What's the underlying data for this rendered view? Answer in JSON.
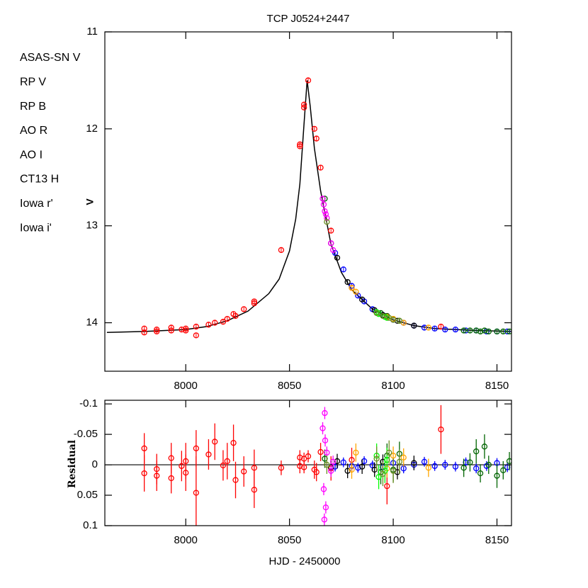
{
  "chart_data": [
    {
      "type": "scatter",
      "title": "TCP J0524+2447",
      "ylabel": "V",
      "xlim": [
        7961,
        8157
      ],
      "xticks": [
        8000,
        8050,
        8100,
        8150
      ],
      "ylim": [
        14.5,
        11
      ],
      "yticks": [
        11,
        12,
        13,
        14
      ],
      "model": {
        "color": "#000000",
        "x": [
          7962,
          7980,
          8000,
          8010,
          8020,
          8030,
          8040,
          8045,
          8050,
          8053,
          8055,
          8057,
          8058.5,
          8060,
          8062,
          8065,
          8070,
          8075,
          8080,
          8090,
          8100,
          8110,
          8120,
          8140,
          8157
        ],
        "values": [
          14.1,
          14.09,
          14.07,
          14.04,
          13.98,
          13.88,
          13.7,
          13.55,
          13.26,
          12.93,
          12.57,
          11.95,
          11.5,
          11.77,
          12.2,
          12.64,
          13.19,
          13.48,
          13.66,
          13.86,
          13.97,
          14.03,
          14.06,
          14.08,
          14.09
        ]
      },
      "series": [
        {
          "name": "ASAS-SN V",
          "color": "#ff0000",
          "x": [
            7980,
            7980,
            7986,
            7986,
            7993,
            7993,
            7998,
            8000,
            8000,
            8005,
            8005,
            8011,
            8014,
            8018,
            8020,
            8023,
            8024,
            8028,
            8033,
            8033,
            8046,
            8055,
            8055,
            8057,
            8057,
            8059,
            8062,
            8063,
            8065,
            8070,
            8080,
            8097,
            8123
          ],
          "values": [
            14.06,
            14.1,
            14.07,
            14.09,
            14.08,
            14.05,
            14.07,
            14.06,
            14.08,
            14.04,
            14.13,
            14.02,
            14.0,
            13.99,
            13.96,
            13.91,
            13.93,
            13.86,
            13.8,
            13.78,
            13.25,
            12.18,
            12.16,
            11.78,
            11.75,
            11.5,
            12.0,
            12.1,
            12.4,
            13.05,
            13.64,
            13.93,
            14.04
          ]
        },
        {
          "name": "RP V",
          "color": "#0000ff",
          "x": [
            8072,
            8076,
            8080,
            8083,
            8086,
            8090,
            8095,
            8100,
            8105,
            8110,
            8115,
            8120,
            8125,
            8130,
            8135,
            8140,
            8145,
            8150,
            8155
          ],
          "values": [
            13.28,
            13.45,
            13.62,
            13.72,
            13.78,
            13.86,
            13.92,
            13.97,
            14.0,
            14.03,
            14.05,
            14.06,
            14.07,
            14.07,
            14.08,
            14.08,
            14.09,
            14.09,
            14.09
          ]
        },
        {
          "name": "RP B",
          "color": "#006400",
          "x": [
            8067,
            8094,
            8097,
            8100,
            8103,
            8134,
            8137,
            8140,
            8142,
            8144,
            8146,
            8150,
            8153,
            8156
          ],
          "values": [
            12.72,
            13.9,
            13.93,
            13.96,
            13.98,
            14.08,
            14.08,
            14.08,
            14.09,
            14.08,
            14.09,
            14.09,
            14.09,
            14.09
          ]
        },
        {
          "name": "AO R",
          "color": "#000000",
          "x": [
            8070,
            8073,
            8078,
            8085,
            8091,
            8095,
            8102,
            8110
          ],
          "values": [
            13.18,
            13.33,
            13.58,
            13.76,
            13.87,
            13.92,
            13.98,
            14.03
          ]
        },
        {
          "name": "AO I",
          "color": "#ffa500",
          "x": [
            8080,
            8082,
            8097,
            8100,
            8105,
            8117
          ],
          "values": [
            13.64,
            13.68,
            13.94,
            13.96,
            14.0,
            14.05
          ]
        },
        {
          "name": "CT13 H",
          "color": "#ff00ff",
          "x": [
            8066,
            8066.5,
            8067,
            8067.5,
            8068,
            8070,
            8071
          ],
          "values": [
            12.72,
            12.78,
            12.85,
            12.88,
            12.92,
            13.18,
            13.25
          ]
        },
        {
          "name": "Iowa r'",
          "color": "#00ff00",
          "x": [
            8092,
            8093,
            8096,
            8097
          ],
          "values": [
            13.89,
            13.91,
            13.94,
            13.95
          ]
        },
        {
          "name": "Iowa i'",
          "color": "#6b8e23",
          "x": [
            8068,
            8092,
            8095,
            8098,
            8100,
            8103
          ],
          "values": [
            12.96,
            13.9,
            13.93,
            13.95,
            13.97,
            13.98
          ]
        }
      ]
    },
    {
      "type": "scatter",
      "ylabel": "Residual",
      "xlabel": "HJD - 2450000",
      "xlim": [
        7961,
        8157
      ],
      "xticks": [
        8000,
        8050,
        8100,
        8150
      ],
      "ylim": [
        0.1,
        -0.106
      ],
      "yticks": [
        -0.1,
        -0.05,
        0,
        0.05,
        0.1
      ],
      "series": [
        {
          "color": "#ff0000",
          "x": [
            7980,
            7980,
            7986,
            7986,
            7993,
            7993,
            7998,
            8000,
            8000,
            8005,
            8005,
            8011,
            8014,
            8018,
            8020,
            8023,
            8024,
            8028,
            8033,
            8033,
            8046,
            8055,
            8055,
            8057,
            8057,
            8059,
            8062,
            8063,
            8065,
            8070,
            8080,
            8097,
            8123
          ],
          "values": [
            -0.027,
            0.014,
            0.007,
            0.018,
            -0.011,
            0.022,
            0.002,
            -0.006,
            0.013,
            -0.027,
            0.046,
            -0.017,
            -0.038,
            0.001,
            -0.006,
            -0.036,
            0.025,
            0.011,
            0.041,
            0.005,
            0.005,
            -0.012,
            0.002,
            -0.01,
            0.004,
            -0.014,
            0.008,
            0.012,
            -0.021,
            0.006,
            -0.008,
            0.035,
            -0.058
          ],
          "errors": [
            0.025,
            0.03,
            0.025,
            0.025,
            0.025,
            0.025,
            0.025,
            0.03,
            0.03,
            0.03,
            0.06,
            0.025,
            0.03,
            0.025,
            0.03,
            0.03,
            0.03,
            0.025,
            0.03,
            0.03,
            0.012,
            0.012,
            0.012,
            0.01,
            0.01,
            0.01,
            0.015,
            0.015,
            0.015,
            0.02,
            0.02,
            0.03,
            0.04
          ]
        },
        {
          "color": "#0000ff",
          "x": [
            8072,
            8076,
            8080,
            8083,
            8086,
            8090,
            8095,
            8100,
            8105,
            8110,
            8115,
            8120,
            8125,
            8130,
            8135,
            8140,
            8145,
            8150,
            8155
          ],
          "values": [
            0.003,
            -0.004,
            0.002,
            0.005,
            -0.006,
            0.001,
            0.004,
            -0.003,
            0.006,
            0.0,
            -0.005,
            0.002,
            0.0,
            0.003,
            -0.004,
            0.006,
            0.002,
            -0.003,
            0.004
          ],
          "errors": [
            0.008,
            0.008,
            0.008,
            0.008,
            0.008,
            0.008,
            0.008,
            0.008,
            0.008,
            0.008,
            0.008,
            0.008,
            0.008,
            0.008,
            0.008,
            0.008,
            0.008,
            0.008,
            0.008
          ]
        },
        {
          "color": "#006400",
          "x": [
            8067,
            8094,
            8097,
            8100,
            8103,
            8134,
            8137,
            8140,
            8142,
            8144,
            8146,
            8150,
            8153,
            8156
          ],
          "values": [
            -0.01,
            0.012,
            -0.015,
            0.008,
            -0.018,
            0.005,
            -0.004,
            -0.022,
            0.014,
            -0.03,
            0.0,
            0.018,
            0.009,
            -0.006
          ],
          "errors": [
            0.015,
            0.02,
            0.02,
            0.02,
            0.02,
            0.015,
            0.015,
            0.02,
            0.015,
            0.02,
            0.015,
            0.02,
            0.015,
            0.015
          ]
        },
        {
          "color": "#000000",
          "x": [
            8070,
            8073,
            8078,
            8085,
            8091,
            8095,
            8102,
            8110
          ],
          "values": [
            0.004,
            -0.006,
            0.01,
            0.003,
            0.008,
            -0.005,
            0.012,
            -0.003
          ],
          "errors": [
            0.012,
            0.012,
            0.012,
            0.012,
            0.012,
            0.012,
            0.012,
            0.012
          ]
        },
        {
          "color": "#ffa500",
          "x": [
            8080,
            8082,
            8097,
            8100,
            8105,
            8117
          ],
          "values": [
            0.008,
            -0.02,
            0.006,
            -0.015,
            -0.012,
            0.005
          ],
          "errors": [
            0.015,
            0.015,
            0.015,
            0.015,
            0.015,
            0.015
          ]
        },
        {
          "color": "#ff00ff",
          "x": [
            8066,
            8066.5,
            8067,
            8067.5,
            8068,
            8070,
            8071,
            8066.8,
            8067.2
          ],
          "values": [
            -0.06,
            0.04,
            -0.085,
            0.07,
            -0.02,
            0.01,
            -0.005,
            0.09,
            -0.04
          ],
          "errors": [
            0.01,
            0.01,
            0.01,
            0.01,
            0.01,
            0.01,
            0.01,
            0.01,
            0.01
          ]
        },
        {
          "color": "#00ff00",
          "x": [
            8092,
            8093,
            8096,
            8097
          ],
          "values": [
            -0.015,
            0.02,
            0.01,
            -0.008
          ],
          "errors": [
            0.02,
            0.02,
            0.02,
            0.02
          ]
        },
        {
          "color": "#6b8e23",
          "x": [
            8068,
            8092,
            8095,
            8098,
            8100,
            8103
          ],
          "values": [
            0.0,
            -0.01,
            0.015,
            -0.02,
            0.01,
            -0.005
          ],
          "errors": [
            0.015,
            0.02,
            0.02,
            0.02,
            0.02,
            0.02
          ]
        }
      ]
    }
  ]
}
